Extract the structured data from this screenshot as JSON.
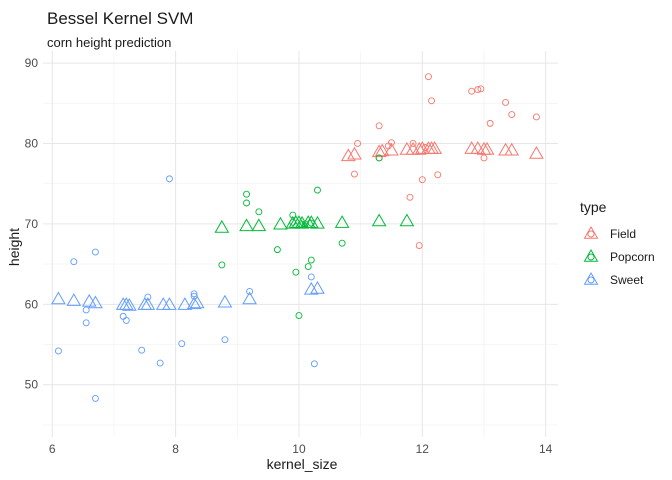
{
  "chart_data": {
    "type": "scatter",
    "title": "Bessel Kernel SVM",
    "subtitle": "corn height prediction",
    "xlabel": "kernel_size",
    "ylabel": "height",
    "xlim": [
      5.85,
      14.2
    ],
    "ylim": [
      43.5,
      91.5
    ],
    "xticks": [
      6,
      8,
      10,
      12,
      14
    ],
    "yticks": [
      50,
      60,
      70,
      80,
      90
    ],
    "grid": true,
    "legend": {
      "title": "type",
      "position": "right"
    },
    "series": [
      {
        "name": "Field",
        "color": "#F8766D",
        "observed": [
          [
            10.9,
            76.2
          ],
          [
            10.95,
            80.0
          ],
          [
            11.3,
            82.2
          ],
          [
            11.3,
            78.2
          ],
          [
            11.45,
            79.7
          ],
          [
            11.5,
            80.1
          ],
          [
            11.8,
            73.3
          ],
          [
            11.85,
            80.0
          ],
          [
            11.95,
            67.3
          ],
          [
            12.0,
            75.5
          ],
          [
            12.05,
            79.5
          ],
          [
            12.1,
            88.3
          ],
          [
            12.15,
            85.3
          ],
          [
            12.25,
            76.1
          ],
          [
            12.8,
            86.5
          ],
          [
            12.9,
            86.7
          ],
          [
            12.95,
            86.8
          ],
          [
            13.0,
            78.2
          ],
          [
            13.1,
            82.5
          ],
          [
            13.35,
            85.1
          ],
          [
            13.45,
            83.6
          ],
          [
            13.85,
            83.3
          ]
        ],
        "predicted": [
          [
            10.8,
            78.4
          ],
          [
            10.9,
            78.6
          ],
          [
            11.3,
            78.9
          ],
          [
            11.35,
            79.0
          ],
          [
            11.5,
            79.1
          ],
          [
            11.75,
            79.2
          ],
          [
            11.85,
            79.2
          ],
          [
            11.95,
            79.2
          ],
          [
            12.0,
            79.3
          ],
          [
            12.1,
            79.3
          ],
          [
            12.15,
            79.3
          ],
          [
            12.2,
            79.3
          ],
          [
            12.8,
            79.3
          ],
          [
            12.9,
            79.3
          ],
          [
            13.0,
            79.2
          ],
          [
            13.05,
            79.2
          ],
          [
            13.35,
            79.1
          ],
          [
            13.45,
            79.1
          ],
          [
            13.85,
            78.7
          ]
        ]
      },
      {
        "name": "Popcorn",
        "color": "#00BA38",
        "observed": [
          [
            8.75,
            64.9
          ],
          [
            9.15,
            73.7
          ],
          [
            9.15,
            72.6
          ],
          [
            9.35,
            71.5
          ],
          [
            9.65,
            66.8
          ],
          [
            9.9,
            71.1
          ],
          [
            9.9,
            70.2
          ],
          [
            9.95,
            64.0
          ],
          [
            10.0,
            58.6
          ],
          [
            10.05,
            69.9
          ],
          [
            10.1,
            70.0
          ],
          [
            10.15,
            64.7
          ],
          [
            10.2,
            65.5
          ],
          [
            10.2,
            70.1
          ],
          [
            10.3,
            74.2
          ],
          [
            10.7,
            67.6
          ],
          [
            11.3,
            78.2
          ]
        ],
        "predicted": [
          [
            8.75,
            69.5
          ],
          [
            9.15,
            69.7
          ],
          [
            9.35,
            69.7
          ],
          [
            9.7,
            69.9
          ],
          [
            9.9,
            70.0
          ],
          [
            9.95,
            70.1
          ],
          [
            10.0,
            70.1
          ],
          [
            10.05,
            70.0
          ],
          [
            10.15,
            70.1
          ],
          [
            10.2,
            70.1
          ],
          [
            10.3,
            70.0
          ],
          [
            10.7,
            70.1
          ],
          [
            11.3,
            70.3
          ],
          [
            11.75,
            70.3
          ]
        ]
      },
      {
        "name": "Sweet",
        "color": "#619CFF",
        "observed": [
          [
            6.1,
            54.2
          ],
          [
            6.35,
            65.3
          ],
          [
            6.55,
            57.7
          ],
          [
            6.55,
            59.3
          ],
          [
            6.7,
            66.5
          ],
          [
            6.7,
            48.3
          ],
          [
            7.15,
            58.5
          ],
          [
            7.2,
            58.0
          ],
          [
            7.45,
            54.3
          ],
          [
            7.55,
            60.9
          ],
          [
            7.75,
            52.7
          ],
          [
            7.9,
            75.6
          ],
          [
            8.1,
            55.1
          ],
          [
            8.3,
            61.0
          ],
          [
            8.3,
            61.3
          ],
          [
            8.8,
            55.6
          ],
          [
            9.2,
            61.6
          ],
          [
            10.2,
            63.4
          ],
          [
            10.25,
            52.6
          ]
        ],
        "predicted": [
          [
            6.1,
            60.6
          ],
          [
            6.35,
            60.4
          ],
          [
            6.6,
            60.3
          ],
          [
            6.7,
            60.1
          ],
          [
            7.15,
            59.9
          ],
          [
            7.2,
            59.9
          ],
          [
            7.25,
            59.8
          ],
          [
            7.5,
            59.9
          ],
          [
            7.55,
            59.9
          ],
          [
            7.8,
            59.9
          ],
          [
            7.9,
            59.9
          ],
          [
            8.15,
            59.9
          ],
          [
            8.3,
            60.0
          ],
          [
            8.35,
            60.1
          ],
          [
            8.8,
            60.2
          ],
          [
            9.2,
            60.6
          ],
          [
            10.2,
            61.8
          ],
          [
            10.3,
            61.9
          ]
        ]
      }
    ]
  }
}
